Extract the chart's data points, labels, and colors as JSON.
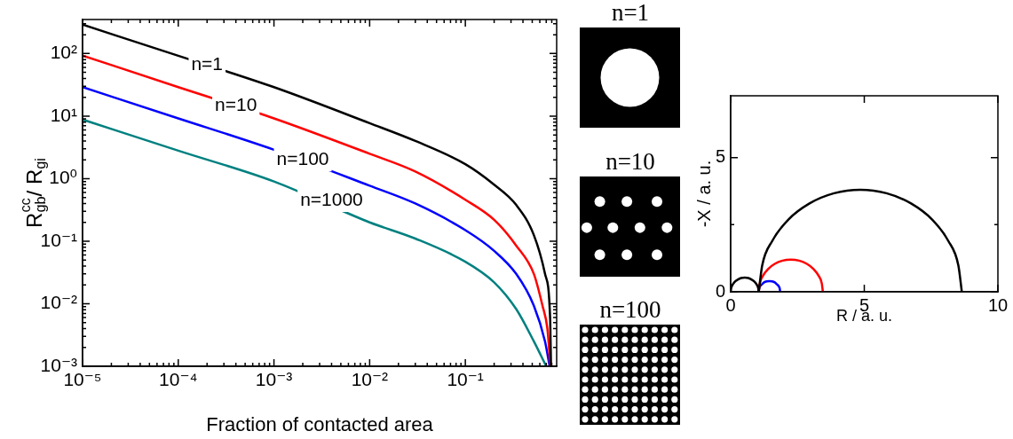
{
  "chart_data": [
    {
      "type": "line",
      "xlabel": "Fraction of contacted area",
      "ylabel": "R$^{cc}$$_{gb}$/ R$_{gi}$",
      "log": "xy",
      "xlim": [
        1e-05,
        0.9
      ],
      "ylim": [
        0.001,
        350
      ],
      "xticks": [
        {
          "value": 1e-05,
          "label": "10⁻⁵"
        },
        {
          "value": 0.0001,
          "label": "10⁻⁴"
        },
        {
          "value": 0.001,
          "label": "10⁻³"
        },
        {
          "value": 0.01,
          "label": "10⁻²"
        },
        {
          "value": 0.1,
          "label": "10⁻¹"
        },
        {
          "value": 2e-05,
          "label": null
        },
        {
          "value": 3e-05,
          "label": null
        },
        {
          "value": 4e-05,
          "label": null
        },
        {
          "value": 5e-05,
          "label": null
        },
        {
          "value": 6e-05,
          "label": null
        },
        {
          "value": 7e-05,
          "label": null
        },
        {
          "value": 8e-05,
          "label": null
        },
        {
          "value": 9e-05,
          "label": null
        },
        {
          "value": 0.0002,
          "label": null
        },
        {
          "value": 0.0003,
          "label": null
        },
        {
          "value": 0.0004,
          "label": null
        },
        {
          "value": 0.0005,
          "label": null
        },
        {
          "value": 0.0006,
          "label": null
        },
        {
          "value": 0.0007,
          "label": null
        },
        {
          "value": 0.0008,
          "label": null
        },
        {
          "value": 0.0009,
          "label": null
        },
        {
          "value": 0.002,
          "label": null
        },
        {
          "value": 0.003,
          "label": null
        },
        {
          "value": 0.004,
          "label": null
        },
        {
          "value": 0.005,
          "label": null
        },
        {
          "value": 0.006,
          "label": null
        },
        {
          "value": 0.007,
          "label": null
        },
        {
          "value": 0.008,
          "label": null
        },
        {
          "value": 0.009,
          "label": null
        },
        {
          "value": 0.02,
          "label": null
        },
        {
          "value": 0.03,
          "label": null
        },
        {
          "value": 0.04,
          "label": null
        },
        {
          "value": 0.05,
          "label": null
        },
        {
          "value": 0.06,
          "label": null
        },
        {
          "value": 0.07,
          "label": null
        },
        {
          "value": 0.08,
          "label": null
        },
        {
          "value": 0.09,
          "label": null
        },
        {
          "value": 0.2,
          "label": null
        },
        {
          "value": 0.3,
          "label": null
        },
        {
          "value": 0.4,
          "label": null
        },
        {
          "value": 0.5,
          "label": null
        },
        {
          "value": 0.6,
          "label": null
        },
        {
          "value": 0.7,
          "label": null
        },
        {
          "value": 0.8,
          "label": null
        }
      ],
      "yticks": [
        {
          "value": 0.001,
          "label": "10⁻³"
        },
        {
          "value": 0.01,
          "label": "10⁻²"
        },
        {
          "value": 0.1,
          "label": "10⁻¹"
        },
        {
          "value": 1,
          "label": "10⁰"
        },
        {
          "value": 10,
          "label": "10¹"
        },
        {
          "value": 100,
          "label": "10²"
        },
        {
          "value": 0.002,
          "label": null
        },
        {
          "value": 0.003,
          "label": null
        },
        {
          "value": 0.004,
          "label": null
        },
        {
          "value": 0.005,
          "label": null
        },
        {
          "value": 0.006,
          "label": null
        },
        {
          "value": 0.007,
          "label": null
        },
        {
          "value": 0.008,
          "label": null
        },
        {
          "value": 0.009,
          "label": null
        },
        {
          "value": 0.02,
          "label": null
        },
        {
          "value": 0.03,
          "label": null
        },
        {
          "value": 0.04,
          "label": null
        },
        {
          "value": 0.05,
          "label": null
        },
        {
          "value": 0.06,
          "label": null
        },
        {
          "value": 0.07,
          "label": null
        },
        {
          "value": 0.08,
          "label": null
        },
        {
          "value": 0.09,
          "label": null
        },
        {
          "value": 0.2,
          "label": null
        },
        {
          "value": 0.3,
          "label": null
        },
        {
          "value": 0.4,
          "label": null
        },
        {
          "value": 0.5,
          "label": null
        },
        {
          "value": 0.6,
          "label": null
        },
        {
          "value": 0.7,
          "label": null
        },
        {
          "value": 0.8,
          "label": null
        },
        {
          "value": 0.9,
          "label": null
        },
        {
          "value": 2,
          "label": null
        },
        {
          "value": 3,
          "label": null
        },
        {
          "value": 4,
          "label": null
        },
        {
          "value": 5,
          "label": null
        },
        {
          "value": 6,
          "label": null
        },
        {
          "value": 7,
          "label": null
        },
        {
          "value": 8,
          "label": null
        },
        {
          "value": 9,
          "label": null
        },
        {
          "value": 20,
          "label": null
        },
        {
          "value": 30,
          "label": null
        },
        {
          "value": 40,
          "label": null
        },
        {
          "value": 50,
          "label": null
        },
        {
          "value": 60,
          "label": null
        },
        {
          "value": 70,
          "label": null
        },
        {
          "value": 80,
          "label": null
        },
        {
          "value": 90,
          "label": null
        },
        {
          "value": 200,
          "label": null
        },
        {
          "value": 300,
          "label": null
        }
      ],
      "series": [
        {
          "color": "#000000",
          "x": [
            1e-05,
            0.0001,
            0.001,
            0.01,
            0.03,
            0.1,
            0.2,
            0.34,
            0.52,
            0.68,
            0.77,
            0.785
          ],
          "values": [
            290,
            92,
            29,
            7.7,
            4,
            1.7,
            0.8,
            0.38,
            0.125,
            0.03,
            0.0056,
            0.001
          ]
        },
        {
          "color": "#ff0000",
          "x": [
            1e-05,
            0.0001,
            0.001,
            0.01,
            0.03,
            0.1,
            0.2,
            0.34,
            0.52,
            0.64,
            0.72,
            0.775
          ],
          "values": [
            93,
            29,
            9.2,
            2.5,
            1.3,
            0.46,
            0.22,
            0.085,
            0.03,
            0.0093,
            0.004,
            0.001
          ]
        },
        {
          "color": "#0000ff",
          "x": [
            1e-05,
            0.0001,
            0.001,
            0.01,
            0.03,
            0.1,
            0.2,
            0.34,
            0.52,
            0.68,
            0.76
          ],
          "values": [
            29,
            9.2,
            2.9,
            0.77,
            0.4,
            0.15,
            0.07,
            0.03,
            0.0093,
            0.0025,
            0.001
          ]
        },
        {
          "color": "#008080",
          "x": [
            1e-05,
            0.0001,
            0.001,
            0.01,
            0.03,
            0.1,
            0.2,
            0.34,
            0.52,
            0.7
          ],
          "values": [
            8.8,
            2.8,
            0.9,
            0.2,
            0.11,
            0.047,
            0.022,
            0.0082,
            0.0025,
            0.001
          ]
        }
      ],
      "annotations": [
        {
          "text": "n=1",
          "x": 0.0002,
          "y": 65
        },
        {
          "text": "n=10",
          "x": 0.0004,
          "y": 14.5
        },
        {
          "text": "n=100",
          "x": 0.002,
          "y": 2
        },
        {
          "text": "n=1000",
          "x": 0.004,
          "y": 0.45
        }
      ]
    },
    {
      "type": "other",
      "annotations": [
        "n=1",
        "n=10",
        "n=100"
      ]
    },
    {
      "type": "line",
      "xlabel": "R / a. u.",
      "ylabel": "-X / a. u.",
      "xlim": [
        0,
        10
      ],
      "ylim": [
        0,
        7.3
      ],
      "xticks": [
        0,
        5,
        10
      ],
      "yticks": [
        0,
        {
          "value": 2.5,
          "label": null
        },
        5
      ],
      "series": [
        {
          "color": "#000000",
          "x": [
            1.05,
            1.03,
            0.98,
            0.9,
            0.79,
            0.66,
            0.53,
            0.39,
            0.26,
            0.15,
            0.07,
            0.02,
            0
          ],
          "values": [
            0,
            0.14,
            0.26,
            0.37,
            0.45,
            0.51,
            0.53,
            0.51,
            0.45,
            0.37,
            0.26,
            0.14,
            0
          ]
        },
        {
          "color": "#000000",
          "x": [
            8.65,
            8.52,
            8.14,
            7.54,
            6.75,
            5.83,
            4.85,
            3.87,
            2.95,
            2.16,
            1.56,
            1.18,
            1.05
          ],
          "values": [
            0,
            0.98,
            1.9,
            2.69,
            3.29,
            3.67,
            3.8,
            3.67,
            3.29,
            2.69,
            1.9,
            0.98,
            0
          ]
        },
        {
          "color": "#ff0000",
          "x": [
            3.45,
            3.41,
            3.29,
            3.1,
            2.85,
            2.56,
            2.25,
            1.94,
            1.65,
            1.4,
            1.21,
            1.09,
            1.05
          ],
          "values": [
            0,
            0.31,
            0.6,
            0.85,
            1.04,
            1.16,
            1.2,
            1.16,
            1.04,
            0.85,
            0.6,
            0.31,
            0
          ]
        },
        {
          "color": "#0000ff",
          "x": [
            1.85,
            1.84,
            1.8,
            1.73,
            1.65,
            1.55,
            1.45,
            1.35,
            1.25,
            1.17,
            1.1,
            1.06,
            1.05
          ],
          "values": [
            0,
            0.1,
            0.2,
            0.28,
            0.35,
            0.39,
            0.4,
            0.39,
            0.35,
            0.28,
            0.2,
            0.1,
            0
          ]
        }
      ]
    }
  ]
}
